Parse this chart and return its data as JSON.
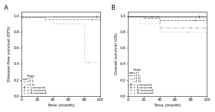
{
  "panel_A": {
    "title": "A",
    "ylabel": "Disease-free survival (DFS)",
    "xlabel": "Time (month)",
    "xlim": [
      0,
      100
    ],
    "ylim": [
      0,
      1.05
    ],
    "yticks": [
      0,
      0.2,
      0.4,
      0.6,
      0.8,
      1.0
    ],
    "xticks": [
      0,
      20,
      40,
      60,
      80,
      100
    ],
    "curves": [
      {
        "stage": "I",
        "x": [
          0,
          100
        ],
        "y": [
          0.99,
          0.99
        ],
        "color": "#555555",
        "linestyle": "-",
        "linewidth": 0.7
      },
      {
        "stage": "II",
        "x": [
          0,
          30,
          30,
          100
        ],
        "y": [
          0.98,
          0.98,
          0.955,
          0.955
        ],
        "color": "#999999",
        "linestyle": "--",
        "linewidth": 0.7
      },
      {
        "stage": "III",
        "x": [
          0,
          40,
          40,
          80,
          80,
          100
        ],
        "y": [
          0.985,
          0.985,
          0.9,
          0.9,
          0.42,
          0.42
        ],
        "color": "#bbbbbb",
        "linestyle": ":",
        "linewidth": 0.9
      }
    ],
    "censored": [
      {
        "x": [
          95
        ],
        "y": [
          0.99
        ],
        "color": "#555555"
      },
      {
        "x": [
          90
        ],
        "y": [
          0.955
        ],
        "color": "#999999"
      },
      {
        "x": [
          85
        ],
        "y": [
          0.42
        ],
        "color": "#bbbbbb"
      }
    ],
    "legend_lines": [
      ">T I",
      ">T II",
      ">T III"
    ],
    "legend_cens": [
      "I-censored",
      "II-censored",
      "III-censored"
    ]
  },
  "panel_B": {
    "title": "B",
    "ylabel": "Overall survival (OS)",
    "xlabel": "Time (month)",
    "xlim": [
      0,
      100
    ],
    "ylim": [
      0,
      1.05
    ],
    "yticks": [
      0,
      0.2,
      0.4,
      0.6,
      0.8,
      1.0
    ],
    "xticks": [
      0,
      20,
      40,
      60,
      80,
      100
    ],
    "curves": [
      {
        "stage": "I",
        "x": [
          0,
          100
        ],
        "y": [
          0.99,
          0.99
        ],
        "color": "#333333",
        "linestyle": "-",
        "linewidth": 0.7
      },
      {
        "stage": "II",
        "x": [
          0,
          20,
          20,
          40,
          40,
          100
        ],
        "y": [
          1.0,
          1.0,
          0.97,
          0.97,
          0.95,
          0.95
        ],
        "color": "#777777",
        "linestyle": "--",
        "linewidth": 0.7
      },
      {
        "stage": "III",
        "x": [
          0,
          40,
          40,
          100
        ],
        "y": [
          1.0,
          1.0,
          0.855,
          0.855
        ],
        "color": "#aaaaaa",
        "linestyle": "-.",
        "linewidth": 0.7
      },
      {
        "stage": "IV",
        "x": [
          0,
          15,
          15,
          40,
          40,
          100
        ],
        "y": [
          1.0,
          1.0,
          0.9,
          0.9,
          0.8,
          0.8
        ],
        "color": "#cccccc",
        "linestyle": ":",
        "linewidth": 0.9
      }
    ],
    "censored": [
      {
        "x": [
          90
        ],
        "y": [
          0.99
        ],
        "color": "#333333"
      },
      {
        "x": [
          85
        ],
        "y": [
          0.95
        ],
        "color": "#777777"
      },
      {
        "x": [
          80
        ],
        "y": [
          0.855
        ],
        "color": "#aaaaaa"
      },
      {
        "x": [
          75
        ],
        "y": [
          0.8
        ],
        "color": "#cccccc"
      }
    ],
    "legend_lines": [
      ">T I",
      ">T II",
      ">T III",
      ">T IV"
    ],
    "legend_cens": [
      "I-censored",
      "II-censored",
      "III-censored",
      "IV-censored"
    ]
  },
  "figure_bg": "#ffffff",
  "axes_bg": "#ffffff",
  "font_size": 4.2,
  "tick_font_size": 3.8,
  "label_fontsize": 4.5
}
